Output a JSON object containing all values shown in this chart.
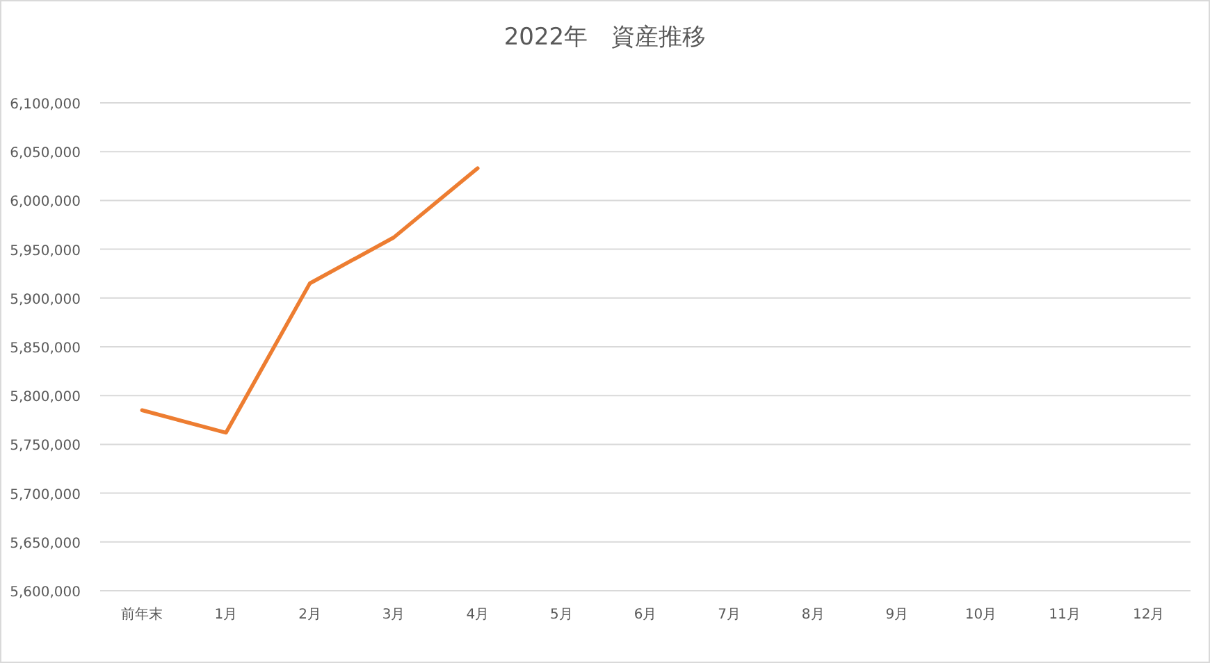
{
  "chart_data": {
    "type": "line",
    "title": "2022年　資産推移",
    "categories": [
      "前年末",
      "1月",
      "2月",
      "3月",
      "4月",
      "5月",
      "6月",
      "7月",
      "8月",
      "9月",
      "10月",
      "11月",
      "12月"
    ],
    "series": [
      {
        "color": "#ed7d31",
        "values": [
          5785000,
          5762000,
          5915000,
          5962000,
          6033000,
          null,
          null,
          null,
          null,
          null,
          null,
          null,
          null
        ]
      }
    ],
    "ylim": [
      5600000,
      6100000
    ],
    "yticks": [
      {
        "value": 5600000,
        "label": "5,600,000"
      },
      {
        "value": 5650000,
        "label": "5,650,000"
      },
      {
        "value": 5700000,
        "label": "5,700,000"
      },
      {
        "value": 5750000,
        "label": "5,750,000"
      },
      {
        "value": 5800000,
        "label": "5,800,000"
      },
      {
        "value": 5850000,
        "label": "5,850,000"
      },
      {
        "value": 5900000,
        "label": "5,900,000"
      },
      {
        "value": 5950000,
        "label": "5,950,000"
      },
      {
        "value": 6000000,
        "label": "6,000,000"
      },
      {
        "value": 6050000,
        "label": "6,050,000"
      },
      {
        "value": 6100000,
        "label": "6,100,000"
      }
    ],
    "grid": "y",
    "marker": "none",
    "line_style": "solid"
  }
}
